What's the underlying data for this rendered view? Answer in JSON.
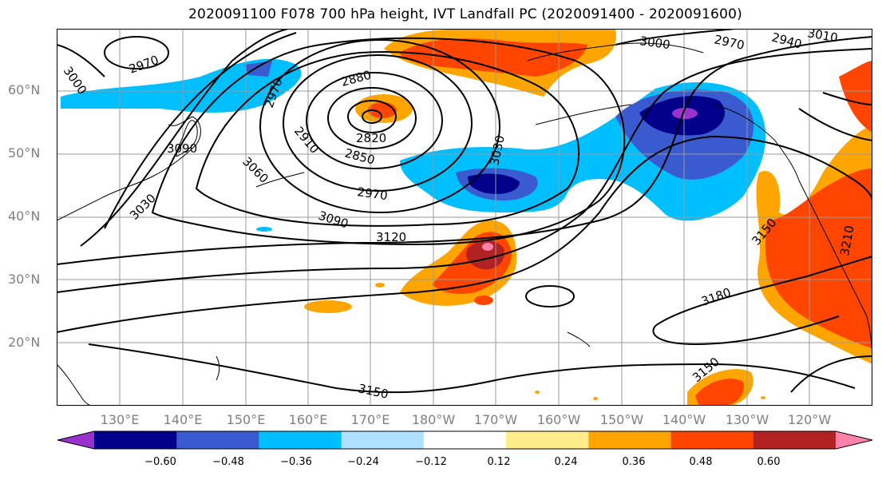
{
  "title": "2020091100 F078 700 hPa height, IVT Landfall PC (2020091400 - 2020091600)",
  "lat_labels": [
    "60°N",
    "50°N",
    "40°N",
    "30°N",
    "20°N"
  ],
  "lon_labels": [
    "130°E",
    "140°E",
    "150°E",
    "160°E",
    "170°E",
    "180°W",
    "170°W",
    "160°W",
    "150°W",
    "140°W",
    "130°W",
    "120°W"
  ],
  "contour_labels": [
    "3000",
    "2970",
    "2970",
    "3090",
    "3060",
    "3030",
    "2880",
    "2910",
    "2820",
    "2850",
    "2970",
    "3090",
    "3120",
    "3030",
    "3000",
    "2970",
    "2940",
    "3010",
    "3150",
    "3180",
    "3150",
    "3210",
    "3150"
  ],
  "colorbar": {
    "ticks": [
      "−0.60",
      "−0.48",
      "−0.36",
      "−0.24",
      "−0.12",
      "0.12",
      "0.24",
      "0.36",
      "0.48",
      "0.60"
    ],
    "colors": [
      "#9932cc",
      "#00008b",
      "#3a5bd0",
      "#00bfff",
      "#b0e2ff",
      "#ffffff",
      "#ffec8b",
      "#ffa500",
      "#ff4500",
      "#b22222",
      "#ff82ab"
    ]
  }
}
